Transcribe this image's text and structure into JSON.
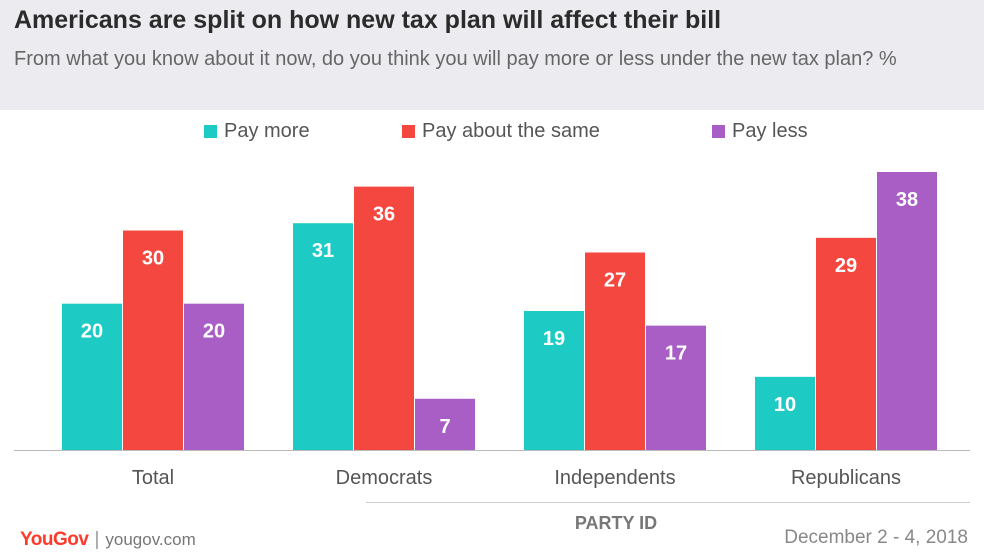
{
  "title": "Americans are split on how new tax plan will affect their bill",
  "subtitle": "From what you know about it now, do you think you will pay more or less under the new tax plan? %",
  "footer": {
    "logo": "YouGov",
    "separator": "|",
    "url": "yougov.com",
    "date": "December 2 - 4, 2018"
  },
  "colors": {
    "header_bg": "#ececf0",
    "pay_more": "#1ecac4",
    "pay_same": "#f4473f",
    "pay_less": "#a95ec6",
    "brand": "#ff3a2a"
  },
  "chart_data": {
    "type": "bar",
    "title": "Americans are split on how new tax plan will affect their bill",
    "subtitle": "From what you know about it now, do you think you will pay more or less under the new tax plan? %",
    "categories": [
      "Total",
      "Democrats",
      "Independents",
      "Republicans"
    ],
    "group_label": "PARTY ID",
    "series": [
      {
        "name": "Pay more",
        "color": "#1ecac4",
        "values": [
          20,
          31,
          19,
          10
        ]
      },
      {
        "name": "Pay about the same",
        "color": "#f4473f",
        "values": [
          30,
          36,
          27,
          29
        ]
      },
      {
        "name": "Pay less",
        "color": "#a95ec6",
        "values": [
          20,
          7,
          17,
          38
        ]
      }
    ],
    "ylim": [
      0,
      38
    ],
    "grid": false,
    "legend": "top",
    "data_labels": true
  }
}
